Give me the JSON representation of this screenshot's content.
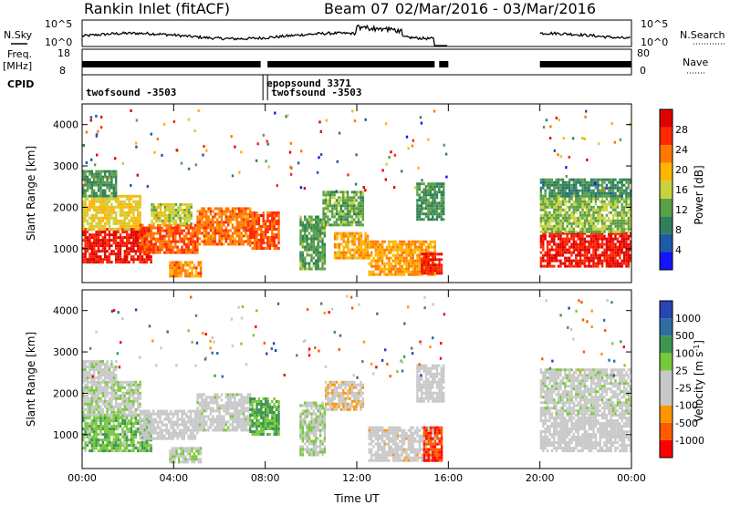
{
  "header": {
    "station": "Rankin Inlet (fitACF)",
    "beam": "Beam 07",
    "date_range": "02/Mar/2016 - 03/Mar/2016"
  },
  "strip_labels": {
    "nsky": "N.Sky",
    "nsky_top": "10^5",
    "nsky_bottom": "10^0",
    "nsearch": "N.Search",
    "nsearch_top": "10^5",
    "nsearch_bottom": "10^0",
    "freq_line1": "Freq.",
    "freq_line2": "[MHz]",
    "freq_top": "18",
    "freq_bottom": "8",
    "nave": "Nave",
    "nave_top": "80",
    "nave_bottom": "0",
    "cpid": "CPID"
  },
  "cpid_entries": [
    {
      "label": "twofsound -3503",
      "t": 0.0
    },
    {
      "label": "epopsound 3371",
      "t": 7.9
    },
    {
      "label": "twofsound -3503",
      "t": 8.1
    }
  ],
  "colors": {
    "power_scale": [
      "#1414ff",
      "#1e5aa8",
      "#2f7f5c",
      "#5aa046",
      "#c8d23c",
      "#ffb400",
      "#ff7800",
      "#ff2800",
      "#e10000"
    ],
    "velocity_scale": [
      "#ff0000",
      "#ff5a00",
      "#ff9600",
      "#c8c8c8",
      "#c8c8c8",
      "#78c83c",
      "#3c9650",
      "#2d6ea0",
      "#2846b4"
    ]
  },
  "chart_data": [
    {
      "type": "heatmap",
      "name": "power",
      "xlabel": "",
      "ylabel": "Slant Range [km]",
      "xlim": [
        0,
        24
      ],
      "ylim": [
        180,
        4500
      ],
      "x_ticks": [
        "00:00",
        "04:00",
        "08:00",
        "12:00",
        "16:00",
        "20:00",
        "00:00"
      ],
      "y_ticks": [
        1000,
        2000,
        3000,
        4000
      ],
      "colorbar": {
        "label": "Power [dB]",
        "tick_labels": [
          "4",
          "8",
          "12",
          "16",
          "20",
          "24",
          "28"
        ],
        "range": [
          0,
          30
        ]
      },
      "regions": [
        {
          "t0": 0.0,
          "t1": 3.0,
          "r0": 700,
          "r1": 1500,
          "value": 27
        },
        {
          "t0": 0.0,
          "t1": 2.5,
          "r0": 1500,
          "r1": 2300,
          "value": 17
        },
        {
          "t0": 0.0,
          "t1": 1.5,
          "r0": 2300,
          "r1": 2900,
          "value": 10
        },
        {
          "t0": 2.5,
          "t1": 5.0,
          "r0": 900,
          "r1": 1600,
          "value": 23
        },
        {
          "t0": 3.0,
          "t1": 4.8,
          "r0": 1600,
          "r1": 2100,
          "value": 15
        },
        {
          "t0": 3.8,
          "t1": 5.2,
          "r0": 350,
          "r1": 700,
          "value": 21
        },
        {
          "t0": 5.0,
          "t1": 7.3,
          "r0": 1100,
          "r1": 2000,
          "value": 22
        },
        {
          "t0": 7.3,
          "t1": 8.6,
          "r0": 1000,
          "r1": 1900,
          "value": 24
        },
        {
          "t0": 9.5,
          "t1": 10.6,
          "r0": 500,
          "r1": 1800,
          "value": 11
        },
        {
          "t0": 10.5,
          "t1": 12.3,
          "r0": 1600,
          "r1": 2400,
          "value": 12
        },
        {
          "t0": 11.0,
          "t1": 12.5,
          "r0": 800,
          "r1": 1400,
          "value": 19
        },
        {
          "t0": 12.5,
          "t1": 15.4,
          "r0": 400,
          "r1": 1200,
          "value": 20
        },
        {
          "t0": 14.6,
          "t1": 15.8,
          "r0": 1700,
          "r1": 2600,
          "value": 10
        },
        {
          "t0": 14.8,
          "t1": 15.7,
          "r0": 400,
          "r1": 900,
          "value": 26
        },
        {
          "t0": 20.0,
          "t1": 24.0,
          "r0": 600,
          "r1": 1400,
          "value": 27
        },
        {
          "t0": 20.0,
          "t1": 24.0,
          "r0": 1400,
          "r1": 2300,
          "value": 13
        },
        {
          "t0": 20.0,
          "t1": 24.0,
          "r0": 2300,
          "r1": 2700,
          "value": 9
        }
      ]
    },
    {
      "type": "heatmap",
      "name": "velocity",
      "xlabel": "Time UT",
      "ylabel": "Slant Range [km]",
      "xlim": [
        0,
        24
      ],
      "ylim": [
        180,
        4500
      ],
      "x_ticks": [
        "00:00",
        "04:00",
        "08:00",
        "12:00",
        "16:00",
        "20:00",
        "00:00"
      ],
      "y_ticks": [
        1000,
        2000,
        3000,
        4000
      ],
      "colorbar": {
        "label": "Velocity [m s^-1]",
        "tick_labels": [
          "1000",
          "500",
          "100",
          "25",
          "-25",
          "-100",
          "-500",
          "-1000"
        ],
        "range": [
          -1200,
          1200
        ]
      },
      "regions": [
        {
          "t0": 0.0,
          "t1": 3.0,
          "r0": 600,
          "r1": 1500,
          "value": 300
        },
        {
          "t0": 0.0,
          "t1": 2.5,
          "r0": 1500,
          "r1": 2300,
          "value": 60
        },
        {
          "t0": 0.0,
          "t1": 1.5,
          "r0": 2300,
          "r1": 2800,
          "value": 0
        },
        {
          "t0": 2.5,
          "t1": 5.0,
          "r0": 900,
          "r1": 1600,
          "value": -150
        },
        {
          "t0": 3.8,
          "t1": 5.2,
          "r0": 350,
          "r1": 700,
          "value": 120
        },
        {
          "t0": 5.0,
          "t1": 7.3,
          "r0": 1100,
          "r1": 2000,
          "value": -60
        },
        {
          "t0": 7.3,
          "t1": 8.6,
          "r0": 1000,
          "r1": 1900,
          "value": 400
        },
        {
          "t0": 9.5,
          "t1": 10.6,
          "r0": 500,
          "r1": 1800,
          "value": 80
        },
        {
          "t0": 10.6,
          "t1": 12.3,
          "r0": 1600,
          "r1": 2300,
          "value": -300
        },
        {
          "t0": 12.5,
          "t1": 15.4,
          "r0": 400,
          "r1": 1200,
          "value": -200
        },
        {
          "t0": 14.6,
          "t1": 15.8,
          "r0": 1800,
          "r1": 2700,
          "value": -120
        },
        {
          "t0": 14.9,
          "t1": 15.7,
          "r0": 400,
          "r1": 1200,
          "value": -900
        },
        {
          "t0": 20.0,
          "t1": 24.0,
          "r0": 600,
          "r1": 1500,
          "value": -180
        },
        {
          "t0": 20.0,
          "t1": 24.0,
          "r0": 1500,
          "r1": 2600,
          "value": 0
        }
      ]
    }
  ]
}
